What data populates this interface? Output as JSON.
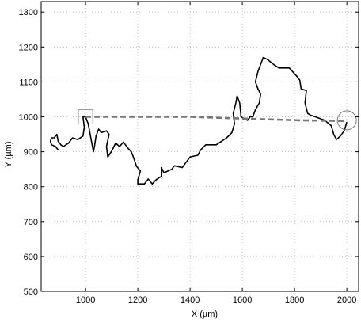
{
  "chart_data": {
    "type": "line",
    "xlabel": "X (µm)",
    "ylabel": "Y (µm)",
    "xlim": [
      830,
      2045
    ],
    "ylim": [
      500,
      1330
    ],
    "grid": true,
    "x_ticks": [
      1000,
      1200,
      1400,
      1600,
      1800,
      2000
    ],
    "y_ticks": [
      500,
      600,
      700,
      800,
      900,
      1000,
      1100,
      1200,
      1300
    ],
    "series": [
      {
        "style": "solid",
        "color": "#000000",
        "points": [
          [
            2000,
            985
          ],
          [
            1990,
            960
          ],
          [
            1975,
            945
          ],
          [
            1960,
            935
          ],
          [
            1950,
            950
          ],
          [
            1940,
            975
          ],
          [
            1915,
            990
          ],
          [
            1880,
            1000
          ],
          [
            1860,
            1005
          ],
          [
            1850,
            1010
          ],
          [
            1840,
            1040
          ],
          [
            1845,
            1075
          ],
          [
            1825,
            1080
          ],
          [
            1820,
            1105
          ],
          [
            1810,
            1115
          ],
          [
            1780,
            1140
          ],
          [
            1740,
            1140
          ],
          [
            1720,
            1150
          ],
          [
            1695,
            1165
          ],
          [
            1680,
            1170
          ],
          [
            1670,
            1150
          ],
          [
            1660,
            1130
          ],
          [
            1650,
            1100
          ],
          [
            1660,
            1080
          ],
          [
            1670,
            1065
          ],
          [
            1665,
            1040
          ],
          [
            1650,
            1020
          ],
          [
            1640,
            1000
          ],
          [
            1630,
            1000
          ],
          [
            1620,
            990
          ],
          [
            1595,
            1000
          ],
          [
            1590,
            1040
          ],
          [
            1580,
            1060
          ],
          [
            1575,
            1040
          ],
          [
            1565,
            1010
          ],
          [
            1570,
            980
          ],
          [
            1560,
            955
          ],
          [
            1540,
            940
          ],
          [
            1520,
            930
          ],
          [
            1500,
            920
          ],
          [
            1480,
            920
          ],
          [
            1460,
            920
          ],
          [
            1440,
            905
          ],
          [
            1430,
            890
          ],
          [
            1400,
            885
          ],
          [
            1385,
            870
          ],
          [
            1370,
            855
          ],
          [
            1340,
            860
          ],
          [
            1330,
            850
          ],
          [
            1300,
            840
          ],
          [
            1290,
            855
          ],
          [
            1290,
            830
          ],
          [
            1270,
            820
          ],
          [
            1255,
            808
          ],
          [
            1240,
            822
          ],
          [
            1225,
            808
          ],
          [
            1200,
            808
          ],
          [
            1200,
            820
          ],
          [
            1210,
            845
          ],
          [
            1195,
            858
          ],
          [
            1185,
            880
          ],
          [
            1175,
            900
          ],
          [
            1160,
            912
          ],
          [
            1145,
            928
          ],
          [
            1130,
            915
          ],
          [
            1115,
            925
          ],
          [
            1100,
            902
          ],
          [
            1085,
            885
          ],
          [
            1080,
            915
          ],
          [
            1090,
            950
          ],
          [
            1080,
            960
          ],
          [
            1060,
            955
          ],
          [
            1050,
            965
          ],
          [
            1040,
            945
          ],
          [
            1035,
            920
          ],
          [
            1030,
            900
          ],
          [
            1025,
            920
          ],
          [
            1020,
            940
          ],
          [
            1015,
            960
          ],
          [
            1010,
            980
          ],
          [
            1000,
            1000
          ],
          [
            990,
            1000
          ],
          [
            995,
            970
          ],
          [
            990,
            945
          ],
          [
            970,
            935
          ],
          [
            950,
            940
          ],
          [
            935,
            925
          ],
          [
            915,
            915
          ],
          [
            905,
            920
          ],
          [
            895,
            930
          ],
          [
            890,
            950
          ],
          [
            880,
            940
          ],
          [
            870,
            940
          ],
          [
            865,
            930
          ],
          [
            870,
            920
          ],
          [
            885,
            915
          ],
          [
            895,
            905
          ]
        ]
      },
      {
        "style": "dashed",
        "color": "#777777",
        "points": [
          [
            1000,
            1000
          ],
          [
            1400,
            1000
          ],
          [
            1600,
            995
          ],
          [
            1820,
            990
          ],
          [
            2000,
            988
          ]
        ]
      }
    ],
    "markers": [
      {
        "shape": "square",
        "x": 1000,
        "y": 1000,
        "color": "#999999"
      },
      {
        "shape": "circle",
        "x": 2000,
        "y": 990,
        "color": "#777777"
      }
    ]
  }
}
